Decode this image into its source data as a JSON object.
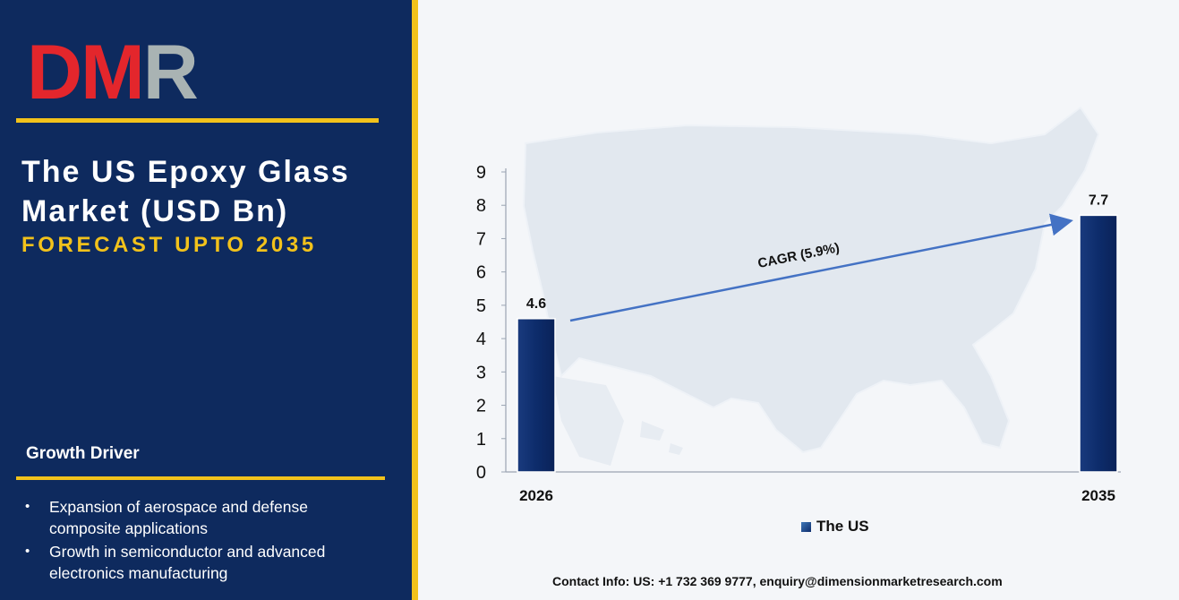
{
  "brand": {
    "logo_text": "DMR"
  },
  "left": {
    "title_line1": "The US Epoxy Glass",
    "title_line2": "Market (USD Bn)",
    "subtitle": "FORECAST UPTO 2035",
    "growth_heading": "Growth Driver",
    "drivers": [
      "Expansion of aerospace and defense composite applications",
      "Growth in semiconductor and advanced electronics manufacturing"
    ]
  },
  "colors": {
    "panel_bg": "#0e2a5e",
    "accent_gold": "#f2c21b",
    "bar_fill": "#0d2c6b",
    "trend_arrow": "#4472c4",
    "logo_red": "#e3262c",
    "logo_gray": "#a9b3b3"
  },
  "chart_data": {
    "type": "bar",
    "categories": [
      "2026",
      "2035"
    ],
    "series": [
      {
        "name": "The US",
        "values": [
          4.6,
          7.7
        ]
      }
    ],
    "data_labels": [
      "4.6",
      "7.7"
    ],
    "ylim": [
      0,
      9
    ],
    "yticks": [
      0,
      1,
      2,
      3,
      4,
      5,
      6,
      7,
      8,
      9
    ],
    "annotation": "CAGR (5.9%)",
    "legend_position": "bottom",
    "grid": false,
    "background": "us-map-silhouette"
  },
  "footer": {
    "contact": "Contact Info: US: +1 732 369 9777, enquiry@dimensionmarketresearch.com"
  }
}
